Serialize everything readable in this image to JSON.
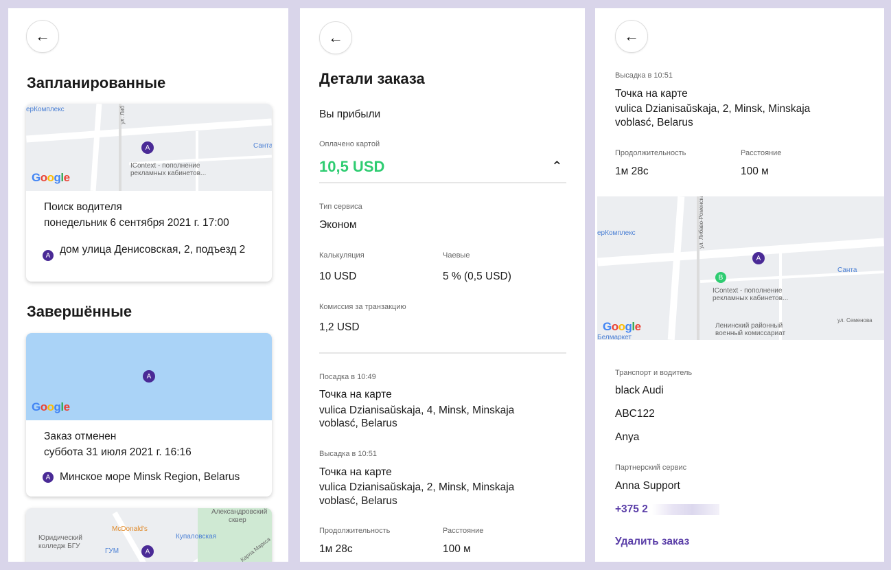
{
  "colors": {
    "accent": "#5b3fa8",
    "paid": "#2ecc71",
    "marker": "#4a2a96",
    "marker_b": "#2ecc71"
  },
  "google": "Google",
  "screen1": {
    "scheduled_title": "Запланированные",
    "completed_title": "Завершённые",
    "cards": [
      {
        "status": "Поиск водителя",
        "date": "понедельник 6 сентября 2021 г. 17:00",
        "marker": "A",
        "address": "дом улица Денисовская, 2, подъезд 2",
        "map_labels": [
          "ерКомплекс",
          "Санта",
          "IContext - пополнение",
          "рекламных кабинетов...",
          "ул. Либ"
        ]
      },
      {
        "status": "Заказ отменен",
        "date": "суббота 31 июля 2021 г. 16:16",
        "marker": "A",
        "address": "Минское море Minsk Region, Belarus"
      },
      {
        "marker": "A",
        "map_labels": [
          "Александровский",
          "сквер",
          "McDonald's",
          "Юридический",
          "колледж БГУ",
          "Купаловская",
          "ГУМ",
          "ул. Карла Маркса"
        ]
      }
    ]
  },
  "screen2": {
    "title": "Детали заказа",
    "status": "Вы прибыли",
    "paid_label": "Оплачено картой",
    "paid_amount": "10,5 USD",
    "service_type_label": "Тип сервиса",
    "service_type": "Эконом",
    "calc_label": "Калькуляция",
    "calc": "10 USD",
    "tips_label": "Чаевые",
    "tips": "5 % (0,5 USD)",
    "fee_label": "Комиссия за транзакцию",
    "fee": "1,2 USD",
    "pickup_label": "Посадка в 10:49",
    "pickup_title": "Точка на карте",
    "pickup_addr1": "vulica Dzianisaŭskaja, 4, Minsk, Minskaja",
    "pickup_addr2": "voblasć, Belarus",
    "dropoff_label": "Высадка в 10:51",
    "dropoff_title": "Точка на карте",
    "dropoff_addr1": "vulica Dzianisaŭskaja, 2, Minsk, Minskaja",
    "dropoff_addr2": "voblasć, Belarus",
    "duration_label": "Продолжительность",
    "duration": "1м 28с",
    "distance_label": "Расстояние",
    "distance": "100 м"
  },
  "screen3": {
    "dropoff_label": "Высадка в 10:51",
    "dropoff_title": "Точка на карте",
    "dropoff_addr1": "vulica Dzianisaŭskaja, 2, Minsk, Minskaja",
    "dropoff_addr2": "voblasć, Belarus",
    "duration_label": "Продолжительность",
    "duration": "1м 28с",
    "distance_label": "Расстояние",
    "distance": "100 м",
    "map_labels": [
      "ерКомплекс",
      "Санта",
      "IContext - пополнение",
      "рекламных кабинетов...",
      "Ленинский районный",
      "военный комиссариат",
      "ул. Семенова",
      "Белмаркет",
      "ул. Либаво-Роменская"
    ],
    "marker_a": "A",
    "marker_b": "B",
    "transport_label": "Транспорт и водитель",
    "car": "black Audi",
    "plate": "ABC122",
    "driver": "Anya",
    "partner_label": "Партнерский сервис",
    "partner": "Anna Support",
    "phone": "+375 2",
    "delete": "Удалить заказ"
  }
}
